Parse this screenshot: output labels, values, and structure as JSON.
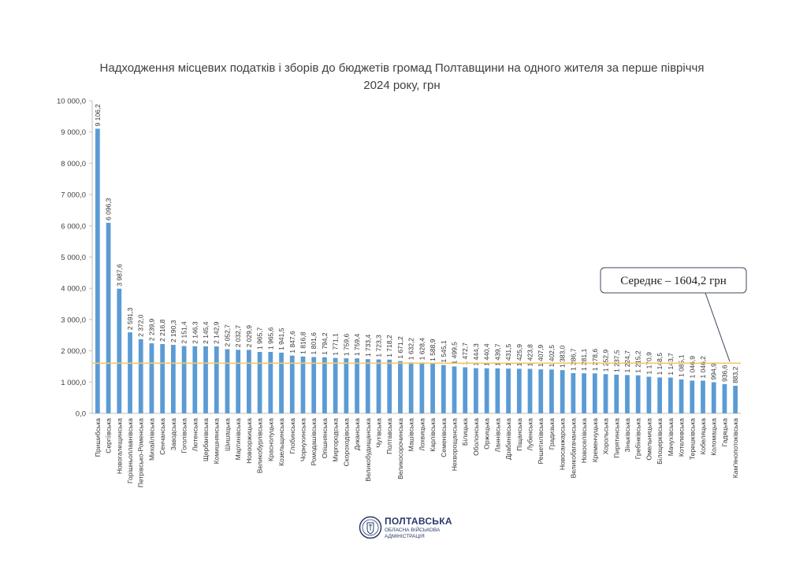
{
  "chart_data": {
    "type": "bar",
    "title": "Надходження місцевих податків і зборів до бюджетів громад Полтавщини на одного жителя за перше півріччя 2024 року, грн",
    "xlabel": "",
    "ylabel": "",
    "ylim": [
      0,
      10000
    ],
    "yticks": [
      "0,0",
      "1 000,0",
      "2 000,0",
      "3 000,0",
      "4 000,0",
      "5 000,0",
      "6 000,0",
      "7 000,0",
      "8 000,0",
      "9 000,0",
      "10 000,0"
    ],
    "categories": [
      "Пришибська",
      "Сергіївська",
      "Новогалещинська",
      "Горішньоплавнівська",
      "Петрівсько-Роменська",
      "Михайлівська",
      "Сенчанська",
      "Заводська",
      "Гоголівська",
      "Лютенська",
      "Щербанівська",
      "Комишнянська",
      "Шишацька",
      "Мартинівська",
      "Новооржицька",
      "Великобурлівська",
      "Краснолуцька",
      "Козельщинська",
      "Глобинська",
      "Чорнухинська",
      "Ромодашівська",
      "Опішнянська",
      "Миргородська",
      "Скороходівська",
      "Диканська",
      "Великобудищанська",
      "Чутівська",
      "Полтавська",
      "Великосорочинська",
      "Машівська",
      "Лохвицька",
      "Карлівська",
      "Семенівська",
      "Нехворощанська",
      "Білицька",
      "Оболонська",
      "Оржицька",
      "Ланнівська",
      "Драбинівська",
      "Піщанська",
      "Лубенська",
      "Решетилівська",
      "Градизька",
      "Новосанжарська",
      "Великобагачанська",
      "Новоселівська",
      "Кременчуцька",
      "Хорольська",
      "Пирятинська",
      "Зіньківська",
      "Гребінківська",
      "Омельницька",
      "Білоцерківська",
      "Мачухівська",
      "Котелевська",
      "Терешківська",
      "Кобеляцька",
      "Коломацька",
      "Гадяцька",
      "Кам'янопотоківська"
    ],
    "values": [
      9106.2,
      6096.3,
      3987.6,
      2591.3,
      2372.0,
      2239.9,
      2216.8,
      2190.3,
      2151.4,
      2146.3,
      2145.4,
      2142.9,
      2052.7,
      2032.7,
      2029.9,
      1965.7,
      1965.6,
      1941.5,
      1847.6,
      1816.8,
      1801.6,
      1794.2,
      1771.1,
      1759.6,
      1759.4,
      1733.4,
      1723.3,
      1718.2,
      1671.2,
      1632.2,
      1628.4,
      1588.9,
      1545.1,
      1499.5,
      1472.7,
      1444.3,
      1440.4,
      1439.7,
      1431.5,
      1425.9,
      1423.8,
      1407.9,
      1402.5,
      1383.0,
      1286.7,
      1281.1,
      1278.6,
      1252.9,
      1237.5,
      1224.7,
      1215.2,
      1170.9,
      1148.5,
      1143.7,
      1085.1,
      1046.9,
      1046.2,
      994.9,
      936.6,
      883.2
    ],
    "value_labels": [
      "9 106,2",
      "6 096,3",
      "3 987,6",
      "2 591,3",
      "2 372,0",
      "2 239,9",
      "2 216,8",
      "2 190,3",
      "2 151,4",
      "2 146,3",
      "2 145,4",
      "2 142,9",
      "2 052,7",
      "2 032,7",
      "2 029,9",
      "1 965,7",
      "1 965,6",
      "1 941,5",
      "1 847,6",
      "1 816,8",
      "1 801,6",
      "1 794,2",
      "1 771,1",
      "1 759,6",
      "1 759,4",
      "1 733,4",
      "1 723,3",
      "1 718,2",
      "1 671,2",
      "1 632,2",
      "1 628,4",
      "1 588,9",
      "1 545,1",
      "1 499,5",
      "1 472,7",
      "1 444,3",
      "1 440,4",
      "1 439,7",
      "1 431,5",
      "1 425,9",
      "1 423,8",
      "1 407,9",
      "1 402,5",
      "1 383,0",
      "1 286,7",
      "1 281,1",
      "1 278,6",
      "1 252,9",
      "1 237,5",
      "1 224,7",
      "1 215,2",
      "1 170,9",
      "1 148,5",
      "1 143,7",
      "1 085,1",
      "1 046,9",
      "1 046,2",
      "994,9",
      "936,6",
      "883,2"
    ],
    "average": {
      "value": 1604.2,
      "label": "Середнє – 1604,2 грн"
    },
    "bar_color": "#5b9bd5",
    "average_line_color": "#f2c86a",
    "grid": false
  },
  "footer": {
    "line1": "ПОЛТАВСЬКА",
    "line2": "ОБЛАСНА ВІЙСЬКОВА АДМІНІСТРАЦІЯ",
    "seal_icon": "coat-of-arms-icon"
  }
}
